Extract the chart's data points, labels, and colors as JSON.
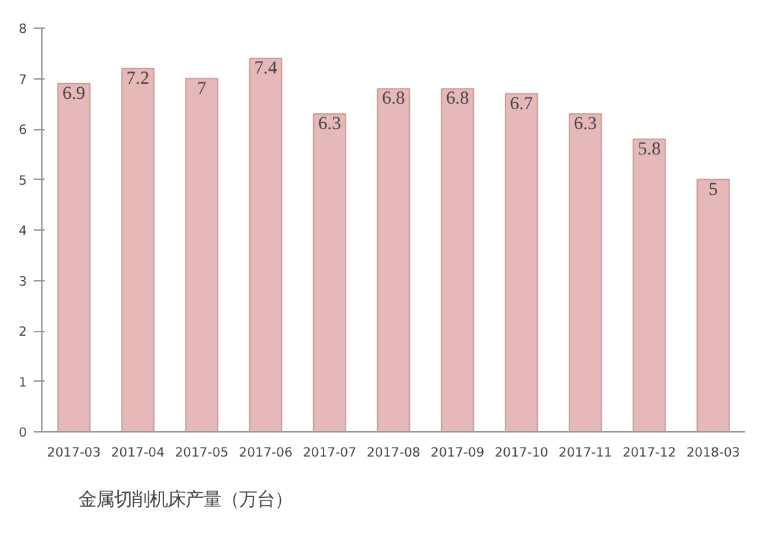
{
  "chart_data": {
    "type": "bar",
    "categories": [
      "2017-03",
      "2017-04",
      "2017-05",
      "2017-06",
      "2017-07",
      "2017-08",
      "2017-09",
      "2017-10",
      "2017-11",
      "2017-12",
      "2018-03"
    ],
    "series": [
      {
        "name": "金属切削机床产量（万台）",
        "color": "#e6b8b7",
        "values": [
          6.9,
          7.2,
          7,
          7.4,
          6.3,
          6.8,
          6.8,
          6.7,
          6.3,
          5.8,
          5
        ]
      }
    ],
    "ylim": [
      0,
      8
    ],
    "yticks": [
      0,
      1,
      2,
      3,
      4,
      5,
      6,
      7,
      8
    ],
    "data_labels": true,
    "grid": false,
    "legend": "bottom"
  }
}
